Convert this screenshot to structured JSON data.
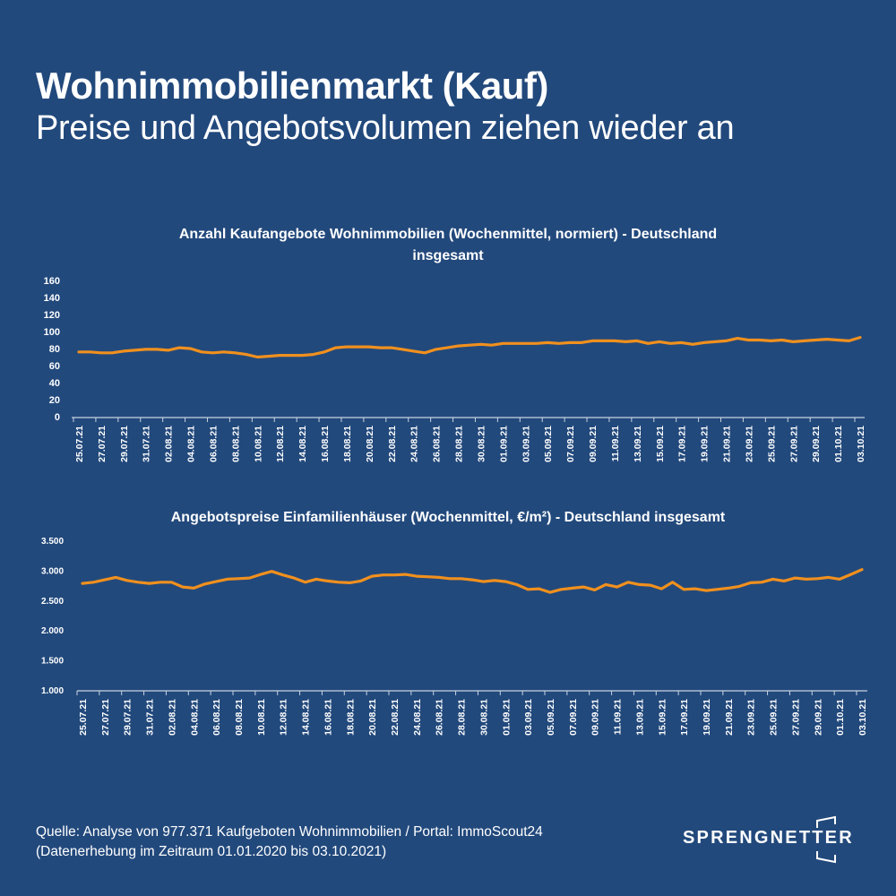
{
  "header": {
    "title": "Wohnimmobilienmarkt (Kauf)",
    "subtitle": "Preise und Angebotsvolumen ziehen wieder an"
  },
  "colors": {
    "background": "#22497c",
    "line": "#f0901e",
    "text": "#ffffff",
    "axis": "#c8d3e3"
  },
  "chart_data": [
    {
      "type": "line",
      "title": "Anzahl Kaufangebote Wohnimmobilien (Wochenmittel, normiert) - Deutschland",
      "title_line2": "insgesamt",
      "xlabel": "",
      "ylabel": "",
      "ylim": [
        0,
        160
      ],
      "yticks": [
        0,
        20,
        40,
        60,
        80,
        100,
        120,
        140,
        160
      ],
      "ytick_labels": [
        "0",
        "20",
        "40",
        "60",
        "80",
        "100",
        "120",
        "140",
        "160"
      ],
      "grid": false,
      "legend": "none",
      "xtick_labels": [
        "25.07.21",
        "27.07.21",
        "29.07.21",
        "31.07.21",
        "02.08.21",
        "04.08.21",
        "06.08.21",
        "08.08.21",
        "10.08.21",
        "12.08.21",
        "14.08.21",
        "16.08.21",
        "18.08.21",
        "20.08.21",
        "22.08.21",
        "24.08.21",
        "26.08.21",
        "28.08.21",
        "30.08.21",
        "01.09.21",
        "03.09.21",
        "05.09.21",
        "07.09.21",
        "09.09.21",
        "11.09.21",
        "13.09.21",
        "15.09.21",
        "17.09.21",
        "19.09.21",
        "21.09.21",
        "23.09.21",
        "25.09.21",
        "27.09.21",
        "29.09.21",
        "01.10.21",
        "03.10.21"
      ],
      "series": [
        {
          "name": "Anzahl Kaufangebote",
          "values": [
            76,
            76,
            75,
            75,
            77,
            78,
            79,
            79,
            78,
            81,
            80,
            76,
            75,
            76,
            75,
            73,
            70,
            71,
            72,
            72,
            72,
            73,
            76,
            81,
            82,
            82,
            82,
            81,
            81,
            79,
            77,
            75,
            79,
            81,
            83,
            84,
            85,
            84,
            86,
            86,
            86,
            86,
            87,
            86,
            87,
            87,
            89,
            89,
            89,
            88,
            89,
            86,
            88,
            86,
            87,
            85,
            87,
            88,
            89,
            92,
            90,
            90,
            89,
            90,
            88,
            89,
            90,
            91,
            90,
            89,
            93
          ]
        }
      ]
    },
    {
      "type": "line",
      "title": "Angebotspreise Einfamilienhäuser (Wochenmittel, €/m²) - Deutschland insgesamt",
      "xlabel": "",
      "ylabel": "",
      "ylim": [
        1000,
        3500
      ],
      "yticks": [
        1000,
        1500,
        2000,
        2500,
        3000,
        3500
      ],
      "ytick_labels": [
        "1.000",
        "1.500",
        "2.000",
        "2.500",
        "3.000",
        "3.500"
      ],
      "grid": false,
      "legend": "none",
      "xtick_labels": [
        "25.07.21",
        "27.07.21",
        "29.07.21",
        "31.07.21",
        "02.08.21",
        "04.08.21",
        "06.08.21",
        "08.08.21",
        "10.08.21",
        "12.08.21",
        "14.08.21",
        "16.08.21",
        "18.08.21",
        "20.08.21",
        "22.08.21",
        "24.08.21",
        "26.08.21",
        "28.08.21",
        "30.08.21",
        "01.09.21",
        "03.09.21",
        "05.09.21",
        "07.09.21",
        "09.09.21",
        "11.09.21",
        "13.09.21",
        "15.09.21",
        "17.09.21",
        "19.09.21",
        "21.09.21",
        "23.09.21",
        "25.09.21",
        "27.09.21",
        "29.09.21",
        "01.10.21",
        "03.10.21"
      ],
      "series": [
        {
          "name": "Angebotspreise €/m²",
          "values": [
            2780,
            2800,
            2840,
            2880,
            2830,
            2800,
            2780,
            2800,
            2800,
            2720,
            2700,
            2770,
            2810,
            2850,
            2860,
            2870,
            2930,
            2980,
            2920,
            2870,
            2800,
            2850,
            2820,
            2800,
            2790,
            2820,
            2900,
            2920,
            2920,
            2930,
            2900,
            2890,
            2880,
            2860,
            2860,
            2840,
            2810,
            2830,
            2810,
            2760,
            2680,
            2690,
            2630,
            2680,
            2700,
            2720,
            2670,
            2760,
            2720,
            2800,
            2760,
            2750,
            2690,
            2800,
            2680,
            2690,
            2660,
            2680,
            2700,
            2730,
            2790,
            2800,
            2850,
            2820,
            2870,
            2850,
            2860,
            2880,
            2850,
            2930,
            3010
          ]
        }
      ]
    }
  ],
  "footer": {
    "source_line1": "Quelle: Analyse von 977.371 Kaufgeboten Wohnimmobilien / Portal: ImmoScout24",
    "source_line2": "(Datenerhebung im Zeitraum  01.01.2020 bis  03.10.2021)"
  },
  "logo": {
    "text": "SPRENGNETTER"
  }
}
